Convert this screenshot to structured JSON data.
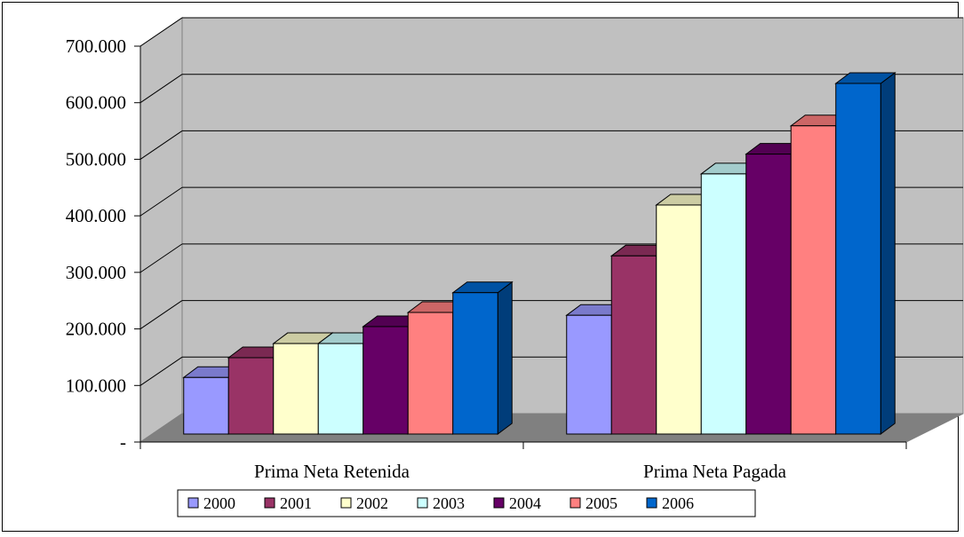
{
  "chart_data": {
    "type": "bar",
    "title": "",
    "xlabel": "",
    "ylabel": "",
    "categories": [
      "Prima Neta Retenida",
      "Prima Neta Pagada"
    ],
    "ylim": [
      0,
      700000
    ],
    "yticks": [
      "-",
      "100.000",
      "200.000",
      "300.000",
      "400.000",
      "500.000",
      "600.000",
      "700.000"
    ],
    "grid": true,
    "legend_position": "bottom",
    "series": [
      {
        "name": "2000",
        "values": [
          100000,
          210000
        ],
        "color": "#9999FF"
      },
      {
        "name": "2001",
        "values": [
          135000,
          315000
        ],
        "color": "#993366"
      },
      {
        "name": "2002",
        "values": [
          160000,
          405000
        ],
        "color": "#FFFFCC"
      },
      {
        "name": "2003",
        "values": [
          160000,
          460000
        ],
        "color": "#CCFFFF"
      },
      {
        "name": "2004",
        "values": [
          190000,
          495000
        ],
        "color": "#660066"
      },
      {
        "name": "2005",
        "values": [
          215000,
          545000
        ],
        "color": "#FF8080"
      },
      {
        "name": "2006",
        "values": [
          250000,
          620000
        ],
        "color": "#0066CC"
      }
    ]
  }
}
